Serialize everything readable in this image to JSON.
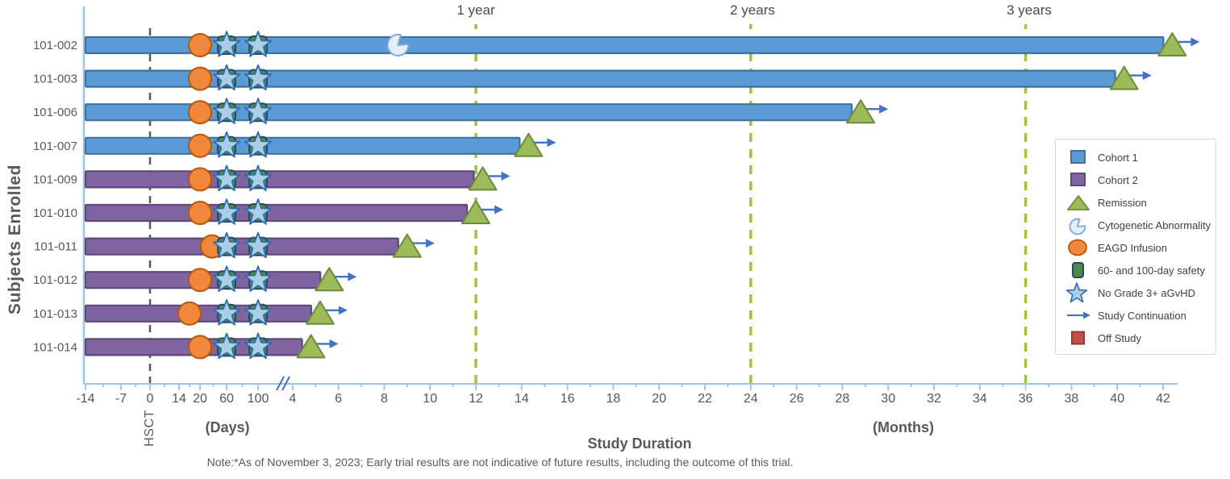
{
  "note": "Note:*As of November 3, 2023; Early trial results are not indicative of future results, including the outcome of this trial.",
  "chart_data": {
    "type": "bar",
    "subtype": "swimmer-plot",
    "ylabel": "Subjects Enrolled",
    "xlabel": "Study Duration",
    "x_axis_units": {
      "days_label": "(Days)",
      "months_label": "(Months)"
    },
    "day_ticks": [
      -14,
      -7,
      0,
      14,
      20,
      60,
      100
    ],
    "month_ticks": [
      4,
      6,
      8,
      10,
      12,
      14,
      16,
      18,
      20,
      22,
      24,
      26,
      28,
      30,
      32,
      34,
      36,
      38,
      40,
      42
    ],
    "axis_break_between": "day 100 and month 4",
    "reference_lines": [
      {
        "label": "HSCT",
        "at_day": 0
      },
      {
        "label": "1 year",
        "at_month": 12
      },
      {
        "label": "2 years",
        "at_month": 24
      },
      {
        "label": "3 years",
        "at_month": 36
      }
    ],
    "subjects": [
      {
        "id": "101-002",
        "cohort": 1,
        "eagd_infusion_day": 20,
        "no_grade3_agvhd_days": [
          60,
          100
        ],
        "cytogenetic_abnormality_month": 8.6,
        "remission_month": 42.4,
        "study_continuation": true
      },
      {
        "id": "101-003",
        "cohort": 1,
        "eagd_infusion_day": 20,
        "no_grade3_agvhd_days": [
          60,
          100
        ],
        "remission_month": 40.3,
        "study_continuation": true
      },
      {
        "id": "101-006",
        "cohort": 1,
        "eagd_infusion_day": 20,
        "no_grade3_agvhd_days": [
          60,
          100
        ],
        "remission_month": 28.8,
        "study_continuation": true
      },
      {
        "id": "101-007",
        "cohort": 1,
        "eagd_infusion_day": 20,
        "no_grade3_agvhd_days": [
          60,
          100
        ],
        "remission_month": 14.3,
        "study_continuation": true
      },
      {
        "id": "101-009",
        "cohort": 2,
        "eagd_infusion_day": 20,
        "no_grade3_agvhd_days": [
          60,
          100
        ],
        "remission_month": 12.3,
        "study_continuation": true
      },
      {
        "id": "101-010",
        "cohort": 2,
        "eagd_infusion_day": 20,
        "no_grade3_agvhd_days": [
          60,
          100
        ],
        "remission_month": 12.0,
        "study_continuation": true
      },
      {
        "id": "101-011",
        "cohort": 2,
        "eagd_infusion_day": 38,
        "no_grade3_agvhd_days": [
          60,
          100
        ],
        "remission_month": 9.0,
        "study_continuation": true
      },
      {
        "id": "101-012",
        "cohort": 2,
        "eagd_infusion_day": 20,
        "no_grade3_agvhd_days": [
          60,
          100
        ],
        "remission_month": 5.6,
        "study_continuation": true
      },
      {
        "id": "101-013",
        "cohort": 2,
        "eagd_infusion_day": 17,
        "no_grade3_agvhd_days": [
          60,
          100
        ],
        "remission_month": 5.2,
        "study_continuation": true
      },
      {
        "id": "101-014",
        "cohort": 2,
        "eagd_infusion_day": 20,
        "no_grade3_agvhd_days": [
          60,
          100
        ],
        "remission_month": 4.8,
        "study_continuation": true
      }
    ],
    "colors": {
      "cohort1": "#5B9BD5",
      "cohort1_border": "#41719C",
      "cohort2": "#8064A2",
      "cohort2_border": "#5E4A78",
      "remission": "#9CBB59",
      "remission_border": "#6E8B3D",
      "infusion": "#F0883B",
      "infusion_border": "#B65708",
      "star": "#A9CEE5",
      "star_border": "#2F6DA4",
      "safety": "#4C8C3C",
      "safety_border": "#24486E",
      "cytogenetic": "#E3EEF9",
      "cytogenetic_border": "#7FA8D9",
      "continuation": "#4472C4",
      "off_study": "#C0504D",
      "off_study_border": "#953735",
      "year_line": "#9DC63B",
      "hsct_line": "#595959",
      "axis": "#9DC3E6",
      "text": "#595959"
    },
    "legend_position": "right"
  },
  "legend": {
    "items": [
      {
        "icon": "cohort-1-swatch",
        "label": "Cohort 1"
      },
      {
        "icon": "cohort-2-swatch",
        "label": "Cohort 2"
      },
      {
        "icon": "remission-icon",
        "label": "Remission"
      },
      {
        "icon": "cytogenetic-abnormality-icon",
        "label": "Cytogenetic Abnormality"
      },
      {
        "icon": "eagd-infusion-icon",
        "label": "EAGD Infusion"
      },
      {
        "icon": "safety-icon",
        "label": "60- and 100-day safety"
      },
      {
        "icon": "no-agvhd-star-icon",
        "label": "No Grade 3+ aGvHD"
      },
      {
        "icon": "study-continuation-arrow-icon",
        "label": "Study Continuation"
      },
      {
        "icon": "off-study-swatch",
        "label": "Off Study"
      }
    ]
  }
}
